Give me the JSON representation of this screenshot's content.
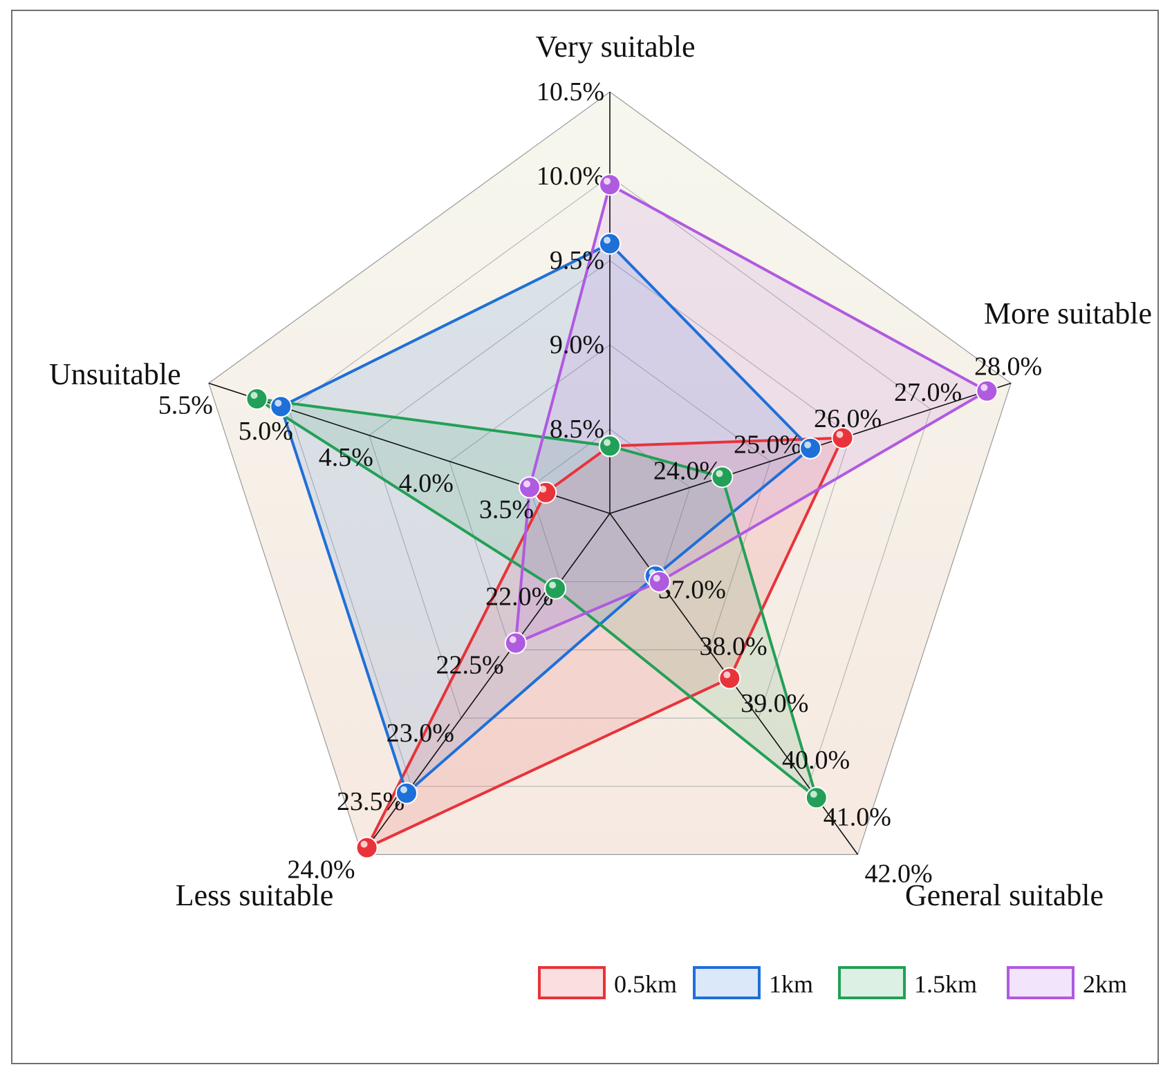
{
  "chart_data": {
    "type": "radar",
    "axes": [
      {
        "name": "Very suitable",
        "min": 8.0,
        "max": 10.5,
        "ticks": [
          8.5,
          9.0,
          9.5,
          10.0,
          10.5
        ],
        "tick_labels": [
          "8.5%",
          "9.0%",
          "9.5%",
          "10.0%",
          "10.5%"
        ]
      },
      {
        "name": "More suitable",
        "min": 23.0,
        "max": 28.0,
        "ticks": [
          24.0,
          25.0,
          26.0,
          27.0,
          28.0
        ],
        "tick_labels": [
          "24.0%",
          "25.0%",
          "26.0%",
          "27.0%",
          "28.0%"
        ]
      },
      {
        "name": "General suitable",
        "min": 36.0,
        "max": 42.0,
        "ticks": [
          37.0,
          38.0,
          39.0,
          40.0,
          41.0,
          42.0
        ],
        "tick_labels": [
          "37.0%",
          "38.0%",
          "39.0%",
          "40.0%",
          "41.0%",
          "42.0%"
        ]
      },
      {
        "name": "Less suitable",
        "min": 21.5,
        "max": 24.0,
        "ticks": [
          22.0,
          22.5,
          23.0,
          23.5,
          24.0
        ],
        "tick_labels": [
          "22.0%",
          "22.5%",
          "23.0%",
          "23.5%",
          "24.0%"
        ]
      },
      {
        "name": "Unsuitable",
        "min": 3.0,
        "max": 5.5,
        "ticks": [
          3.5,
          4.0,
          4.5,
          5.0,
          5.5
        ],
        "tick_labels": [
          "3.5%",
          "4.0%",
          "4.5%",
          "5.0%",
          "5.5%"
        ]
      }
    ],
    "series": [
      {
        "name": "0.5km",
        "color": "#e8333a",
        "values": [
          8.4,
          25.9,
          38.9,
          23.95,
          3.4
        ]
      },
      {
        "name": "1km",
        "color": "#1f6fd8",
        "values": [
          9.6,
          25.5,
          37.1,
          23.55,
          5.05
        ]
      },
      {
        "name": "1.5km",
        "color": "#23a057",
        "values": [
          8.4,
          24.4,
          41.0,
          22.05,
          5.2
        ]
      },
      {
        "name": "2km",
        "color": "#b05ae0",
        "values": [
          9.95,
          27.7,
          37.2,
          22.45,
          3.5
        ]
      }
    ],
    "legend_position": "bottom-right",
    "grid": true
  }
}
